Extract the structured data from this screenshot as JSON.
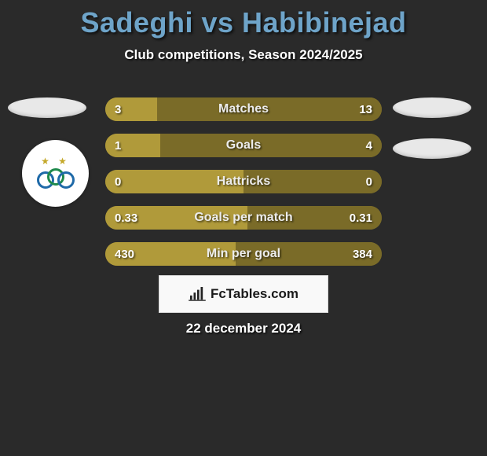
{
  "colors": {
    "background": "#2a2a2a",
    "title": "#6ea4c9",
    "bar_light": "#b09a3a",
    "bar_dark": "#7a6b28",
    "badge_stars": "#c4a82a",
    "ring_blue": "#1f6aa8",
    "ring_green": "#1f8a4c"
  },
  "title": "Sadeghi vs Habibinejad",
  "subtitle": "Club competitions, Season 2024/2025",
  "rows": [
    {
      "label": "Matches",
      "left": "3",
      "right": "13",
      "left_pct": 18.75,
      "right_pct": 81.25
    },
    {
      "label": "Goals",
      "left": "1",
      "right": "4",
      "left_pct": 20.0,
      "right_pct": 80.0
    },
    {
      "label": "Hattricks",
      "left": "0",
      "right": "0",
      "left_pct": 50.0,
      "right_pct": 50.0
    },
    {
      "label": "Goals per match",
      "left": "0.33",
      "right": "0.31",
      "left_pct": 51.56,
      "right_pct": 48.44
    },
    {
      "label": "Min per goal",
      "left": "430",
      "right": "384",
      "left_pct": 47.2,
      "right_pct": 52.8
    }
  ],
  "fctables_label": "FcTables.com",
  "date": "22 december 2024"
}
